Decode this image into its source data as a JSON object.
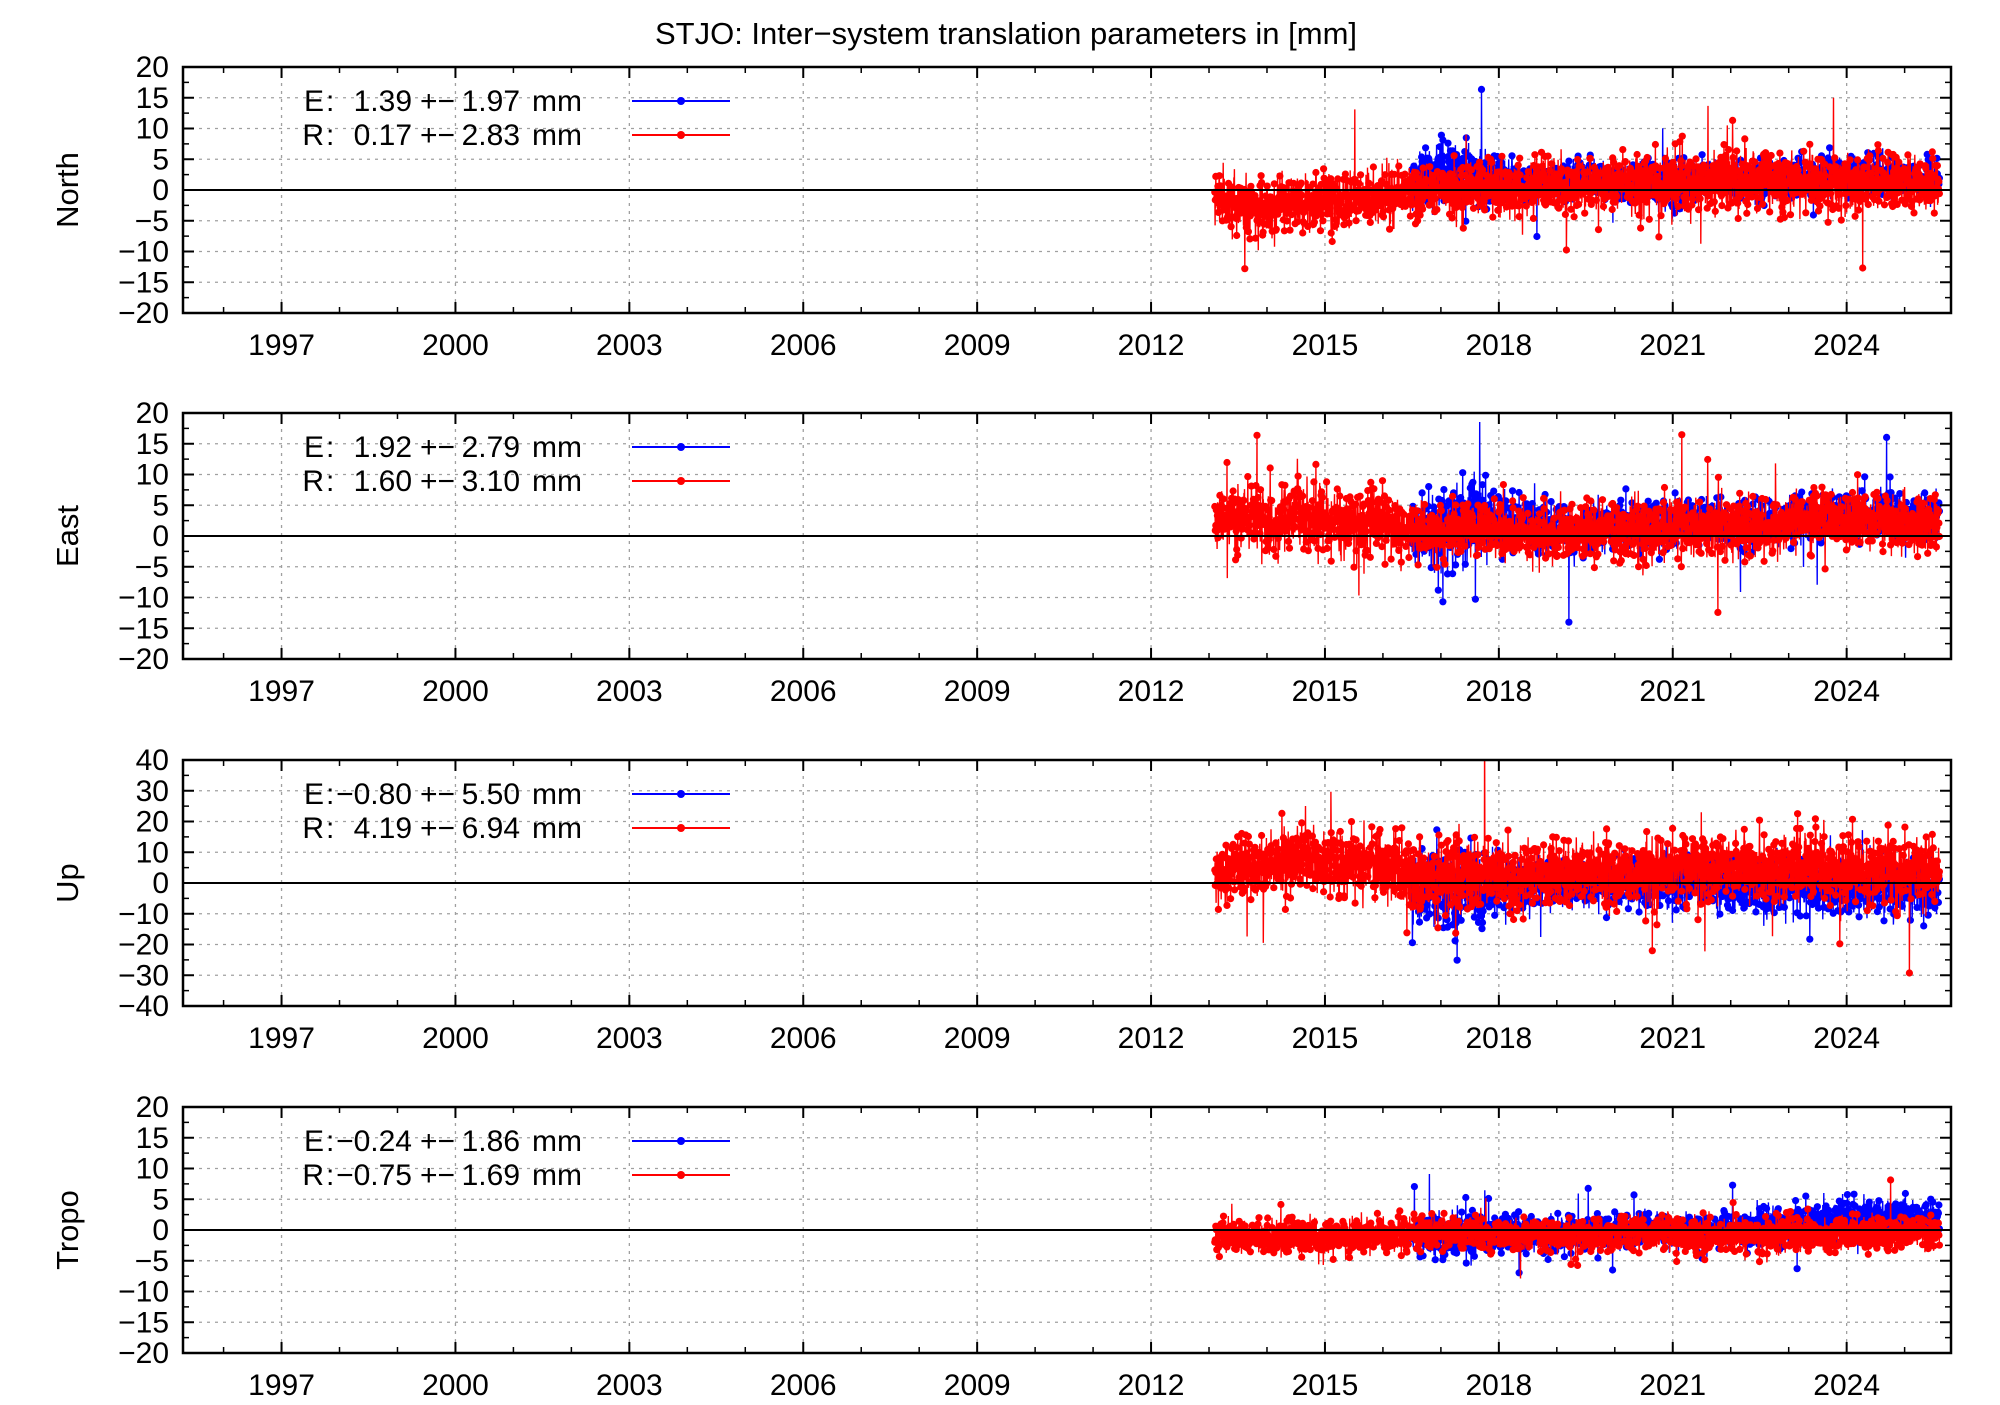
{
  "title": "STJO: Inter−system translation parameters in [mm]",
  "colors": {
    "E": "#0000ff",
    "R": "#ff0000",
    "zero_line": "#000000",
    "grid": "#a0a0a0"
  },
  "chart_data": [
    {
      "type": "scatter",
      "panel": "north",
      "ylabel": "North",
      "xlim": [
        1995.3,
        2025.8
      ],
      "ylim": [
        -20,
        20
      ],
      "yticks": [
        20,
        15,
        10,
        5,
        0,
        -5,
        -10,
        -15,
        -20
      ],
      "xticks": [
        1997,
        2000,
        2003,
        2006,
        2009,
        2012,
        2015,
        2018,
        2021,
        2024
      ],
      "grid": true,
      "legend_position": "top-left",
      "series": [
        {
          "name": "E",
          "mean": "1.39",
          "sigma": "1.97",
          "unit": "mm",
          "color": "#0000ff",
          "x": [
            2016.5,
            2017.0,
            2017.5,
            2018.0,
            2018.5,
            2019.0,
            2019.5,
            2020.0,
            2020.5,
            2021.0,
            2021.5,
            2022.0,
            2022.5,
            2023.0,
            2023.5,
            2024.0,
            2024.5,
            2025.0,
            2025.6
          ],
          "y": [
            1.5,
            3.0,
            2.0,
            2.0,
            1.0,
            1.0,
            2.0,
            1.5,
            1.5,
            0.5,
            2.0,
            1.5,
            1.5,
            2.0,
            1.5,
            2.5,
            2.0,
            2.0,
            1.5
          ],
          "spread": [
            2.5,
            3.5,
            3.5,
            2.5,
            2.0,
            2.0,
            2.0,
            2.0,
            2.0,
            2.5,
            2.0,
            2.0,
            2.0,
            2.0,
            2.0,
            2.0,
            2.0,
            2.0,
            2.0
          ]
        },
        {
          "name": "R",
          "mean": "0.17",
          "sigma": "2.83",
          "unit": "mm",
          "color": "#ff0000",
          "x": [
            2013.1,
            2013.5,
            2014.0,
            2014.5,
            2015.0,
            2015.5,
            2016.0,
            2016.5,
            2017.0,
            2017.5,
            2018.0,
            2018.5,
            2019.0,
            2019.5,
            2020.0,
            2020.5,
            2021.0,
            2021.5,
            2022.0,
            2022.5,
            2023.0,
            2023.5,
            2024.0,
            2024.5,
            2025.0,
            2025.6
          ],
          "y": [
            -1.5,
            -2.0,
            -2.5,
            -2.0,
            -1.5,
            -1.5,
            -1.0,
            -0.5,
            0.0,
            0.5,
            0.0,
            0.0,
            0.5,
            0.5,
            1.0,
            0.5,
            1.5,
            1.0,
            1.5,
            1.5,
            1.5,
            1.0,
            1.0,
            1.0,
            1.0,
            0.5
          ],
          "spread": [
            3.0,
            3.0,
            3.0,
            3.0,
            3.0,
            3.0,
            3.0,
            3.0,
            3.0,
            3.0,
            3.0,
            3.0,
            3.0,
            3.0,
            3.0,
            3.0,
            3.0,
            3.0,
            3.5,
            3.0,
            3.0,
            3.0,
            3.0,
            3.0,
            3.0,
            3.0
          ]
        }
      ]
    },
    {
      "type": "scatter",
      "panel": "east",
      "ylabel": "East",
      "xlim": [
        1995.3,
        2025.8
      ],
      "ylim": [
        -20,
        20
      ],
      "yticks": [
        20,
        15,
        10,
        5,
        0,
        -5,
        -10,
        -15,
        -20
      ],
      "xticks": [
        1997,
        2000,
        2003,
        2006,
        2009,
        2012,
        2015,
        2018,
        2021,
        2024
      ],
      "grid": true,
      "legend_position": "top-left",
      "series": [
        {
          "name": "E",
          "mean": "1.92",
          "sigma": "2.79",
          "unit": "mm",
          "color": "#0000ff",
          "x": [
            2016.5,
            2017.0,
            2017.5,
            2018.0,
            2018.5,
            2019.0,
            2019.5,
            2020.0,
            2020.5,
            2021.0,
            2021.5,
            2022.0,
            2022.5,
            2023.0,
            2023.5,
            2024.0,
            2024.5,
            2025.0,
            2025.6
          ],
          "y": [
            1.0,
            0.0,
            3.0,
            2.5,
            2.0,
            1.0,
            1.0,
            2.0,
            1.5,
            2.0,
            2.5,
            2.0,
            1.5,
            2.5,
            3.0,
            3.5,
            3.0,
            3.0,
            2.5
          ],
          "spread": [
            3.0,
            4.5,
            4.0,
            3.0,
            3.0,
            2.5,
            2.5,
            2.5,
            2.5,
            2.5,
            2.5,
            2.5,
            2.5,
            2.5,
            2.5,
            2.5,
            2.5,
            2.5,
            2.5
          ]
        },
        {
          "name": "R",
          "mean": "1.60",
          "sigma": "3.10",
          "unit": "mm",
          "color": "#ff0000",
          "x": [
            2013.1,
            2013.5,
            2014.0,
            2014.5,
            2015.0,
            2015.5,
            2016.0,
            2016.5,
            2017.0,
            2017.5,
            2018.0,
            2018.5,
            2019.0,
            2019.5,
            2020.0,
            2020.5,
            2021.0,
            2021.5,
            2022.0,
            2022.5,
            2023.0,
            2023.5,
            2024.0,
            2024.5,
            2025.0,
            2025.6
          ],
          "y": [
            2.5,
            3.5,
            2.0,
            3.5,
            2.5,
            1.5,
            2.5,
            1.0,
            0.5,
            1.5,
            1.0,
            0.5,
            0.5,
            1.0,
            1.5,
            0.5,
            1.5,
            1.5,
            2.0,
            1.0,
            2.5,
            3.0,
            2.5,
            3.0,
            1.5,
            2.0
          ],
          "spread": [
            3.5,
            3.5,
            3.5,
            3.5,
            3.5,
            3.5,
            3.5,
            3.0,
            3.0,
            3.0,
            3.0,
            3.0,
            3.0,
            3.0,
            3.0,
            3.0,
            3.0,
            3.0,
            3.0,
            3.0,
            3.0,
            3.0,
            3.0,
            3.0,
            3.0,
            3.0
          ]
        }
      ]
    },
    {
      "type": "scatter",
      "panel": "up",
      "ylabel": "Up",
      "xlim": [
        1995.3,
        2025.8
      ],
      "ylim": [
        -40,
        40
      ],
      "yticks": [
        40,
        30,
        20,
        10,
        0,
        -10,
        -20,
        -30,
        -40
      ],
      "xticks": [
        1997,
        2000,
        2003,
        2006,
        2009,
        2012,
        2015,
        2018,
        2021,
        2024
      ],
      "grid": true,
      "legend_position": "top-left",
      "series": [
        {
          "name": "E",
          "mean": "−0.80",
          "sigma": "5.50",
          "unit": "mm",
          "color": "#0000ff",
          "x": [
            2016.5,
            2017.0,
            2017.5,
            2018.0,
            2018.5,
            2019.0,
            2019.5,
            2020.0,
            2020.5,
            2021.0,
            2021.5,
            2022.0,
            2022.5,
            2023.0,
            2023.5,
            2024.0,
            2024.5,
            2025.0,
            2025.6
          ],
          "y": [
            -1.0,
            -3.0,
            -2.0,
            -1.0,
            0.0,
            0.0,
            -0.5,
            0.0,
            0.0,
            0.5,
            0.0,
            -1.0,
            -1.5,
            -1.0,
            -2.0,
            -1.5,
            -2.0,
            -1.5,
            -2.0
          ],
          "spread": [
            7.0,
            9.0,
            8.0,
            6.0,
            5.5,
            5.0,
            5.0,
            5.0,
            5.0,
            5.5,
            5.0,
            5.5,
            5.5,
            6.0,
            6.0,
            6.0,
            6.0,
            6.0,
            5.5
          ]
        },
        {
          "name": "R",
          "mean": "4.19",
          "sigma": "6.94",
          "unit": "mm",
          "color": "#ff0000",
          "x": [
            2013.1,
            2013.5,
            2014.0,
            2014.5,
            2015.0,
            2015.5,
            2016.0,
            2016.5,
            2017.0,
            2017.5,
            2018.0,
            2018.5,
            2019.0,
            2019.5,
            2020.0,
            2020.5,
            2021.0,
            2021.5,
            2022.0,
            2022.5,
            2023.0,
            2023.5,
            2024.0,
            2024.5,
            2025.0,
            2025.6
          ],
          "y": [
            4.0,
            5.0,
            6.0,
            7.0,
            7.0,
            6.0,
            6.5,
            2.0,
            2.5,
            3.0,
            2.0,
            2.5,
            3.5,
            3.5,
            3.5,
            3.5,
            5.5,
            5.0,
            5.0,
            4.5,
            4.5,
            5.0,
            4.0,
            4.0,
            4.5,
            3.0
          ],
          "spread": [
            7.0,
            7.0,
            7.0,
            7.0,
            7.0,
            7.0,
            7.0,
            7.5,
            7.5,
            7.0,
            7.0,
            7.0,
            7.0,
            7.0,
            7.0,
            7.0,
            7.0,
            7.0,
            7.0,
            7.0,
            7.5,
            7.0,
            7.0,
            7.0,
            7.0,
            6.5
          ]
        }
      ]
    },
    {
      "type": "scatter",
      "panel": "tropo",
      "ylabel": "Tropo",
      "xlim": [
        1995.3,
        2025.8
      ],
      "ylim": [
        -20,
        20
      ],
      "yticks": [
        20,
        15,
        10,
        5,
        0,
        -5,
        -10,
        -15,
        -20
      ],
      "xticks": [
        1997,
        2000,
        2003,
        2006,
        2009,
        2012,
        2015,
        2018,
        2021,
        2024
      ],
      "grid": true,
      "legend_position": "top-left",
      "series": [
        {
          "name": "E",
          "mean": "−0.24",
          "sigma": "1.86",
          "unit": "mm",
          "color": "#0000ff",
          "x": [
            2016.5,
            2017.0,
            2017.5,
            2018.0,
            2018.5,
            2019.0,
            2019.5,
            2020.0,
            2020.5,
            2021.0,
            2021.5,
            2022.0,
            2022.5,
            2023.0,
            2023.5,
            2024.0,
            2024.5,
            2025.0,
            2025.6
          ],
          "y": [
            -0.5,
            -1.0,
            -1.0,
            -0.5,
            -0.5,
            -0.5,
            -0.5,
            0.0,
            0.0,
            0.0,
            0.0,
            0.0,
            0.5,
            0.5,
            1.5,
            2.0,
            2.0,
            2.0,
            2.0
          ],
          "spread": [
            2.0,
            2.5,
            2.5,
            2.0,
            2.0,
            1.8,
            1.8,
            1.8,
            1.8,
            1.8,
            1.8,
            1.8,
            1.8,
            1.8,
            2.0,
            2.0,
            2.0,
            1.8,
            1.8
          ]
        },
        {
          "name": "R",
          "mean": "−0.75",
          "sigma": "1.69",
          "unit": "mm",
          "color": "#ff0000",
          "x": [
            2013.1,
            2013.5,
            2014.0,
            2014.5,
            2015.0,
            2015.5,
            2016.0,
            2016.5,
            2017.0,
            2017.5,
            2018.0,
            2018.5,
            2019.0,
            2019.5,
            2020.0,
            2020.5,
            2021.0,
            2021.5,
            2022.0,
            2022.5,
            2023.0,
            2023.5,
            2024.0,
            2024.5,
            2025.0,
            2025.6
          ],
          "y": [
            -1.0,
            -1.0,
            -1.5,
            -1.0,
            -1.5,
            -1.0,
            -1.0,
            -0.5,
            -0.5,
            -0.5,
            -0.5,
            -0.5,
            -1.0,
            -1.0,
            -0.5,
            -0.5,
            -0.5,
            -1.0,
            -1.0,
            -1.0,
            -0.5,
            -0.5,
            -0.5,
            -0.5,
            -0.5,
            -0.5
          ],
          "spread": [
            1.8,
            1.8,
            1.8,
            1.8,
            1.8,
            1.8,
            1.8,
            1.8,
            1.8,
            1.8,
            1.8,
            1.8,
            1.8,
            1.8,
            1.8,
            1.8,
            1.8,
            1.8,
            1.8,
            1.8,
            2.0,
            1.8,
            1.8,
            1.8,
            1.8,
            1.8
          ]
        }
      ]
    }
  ]
}
